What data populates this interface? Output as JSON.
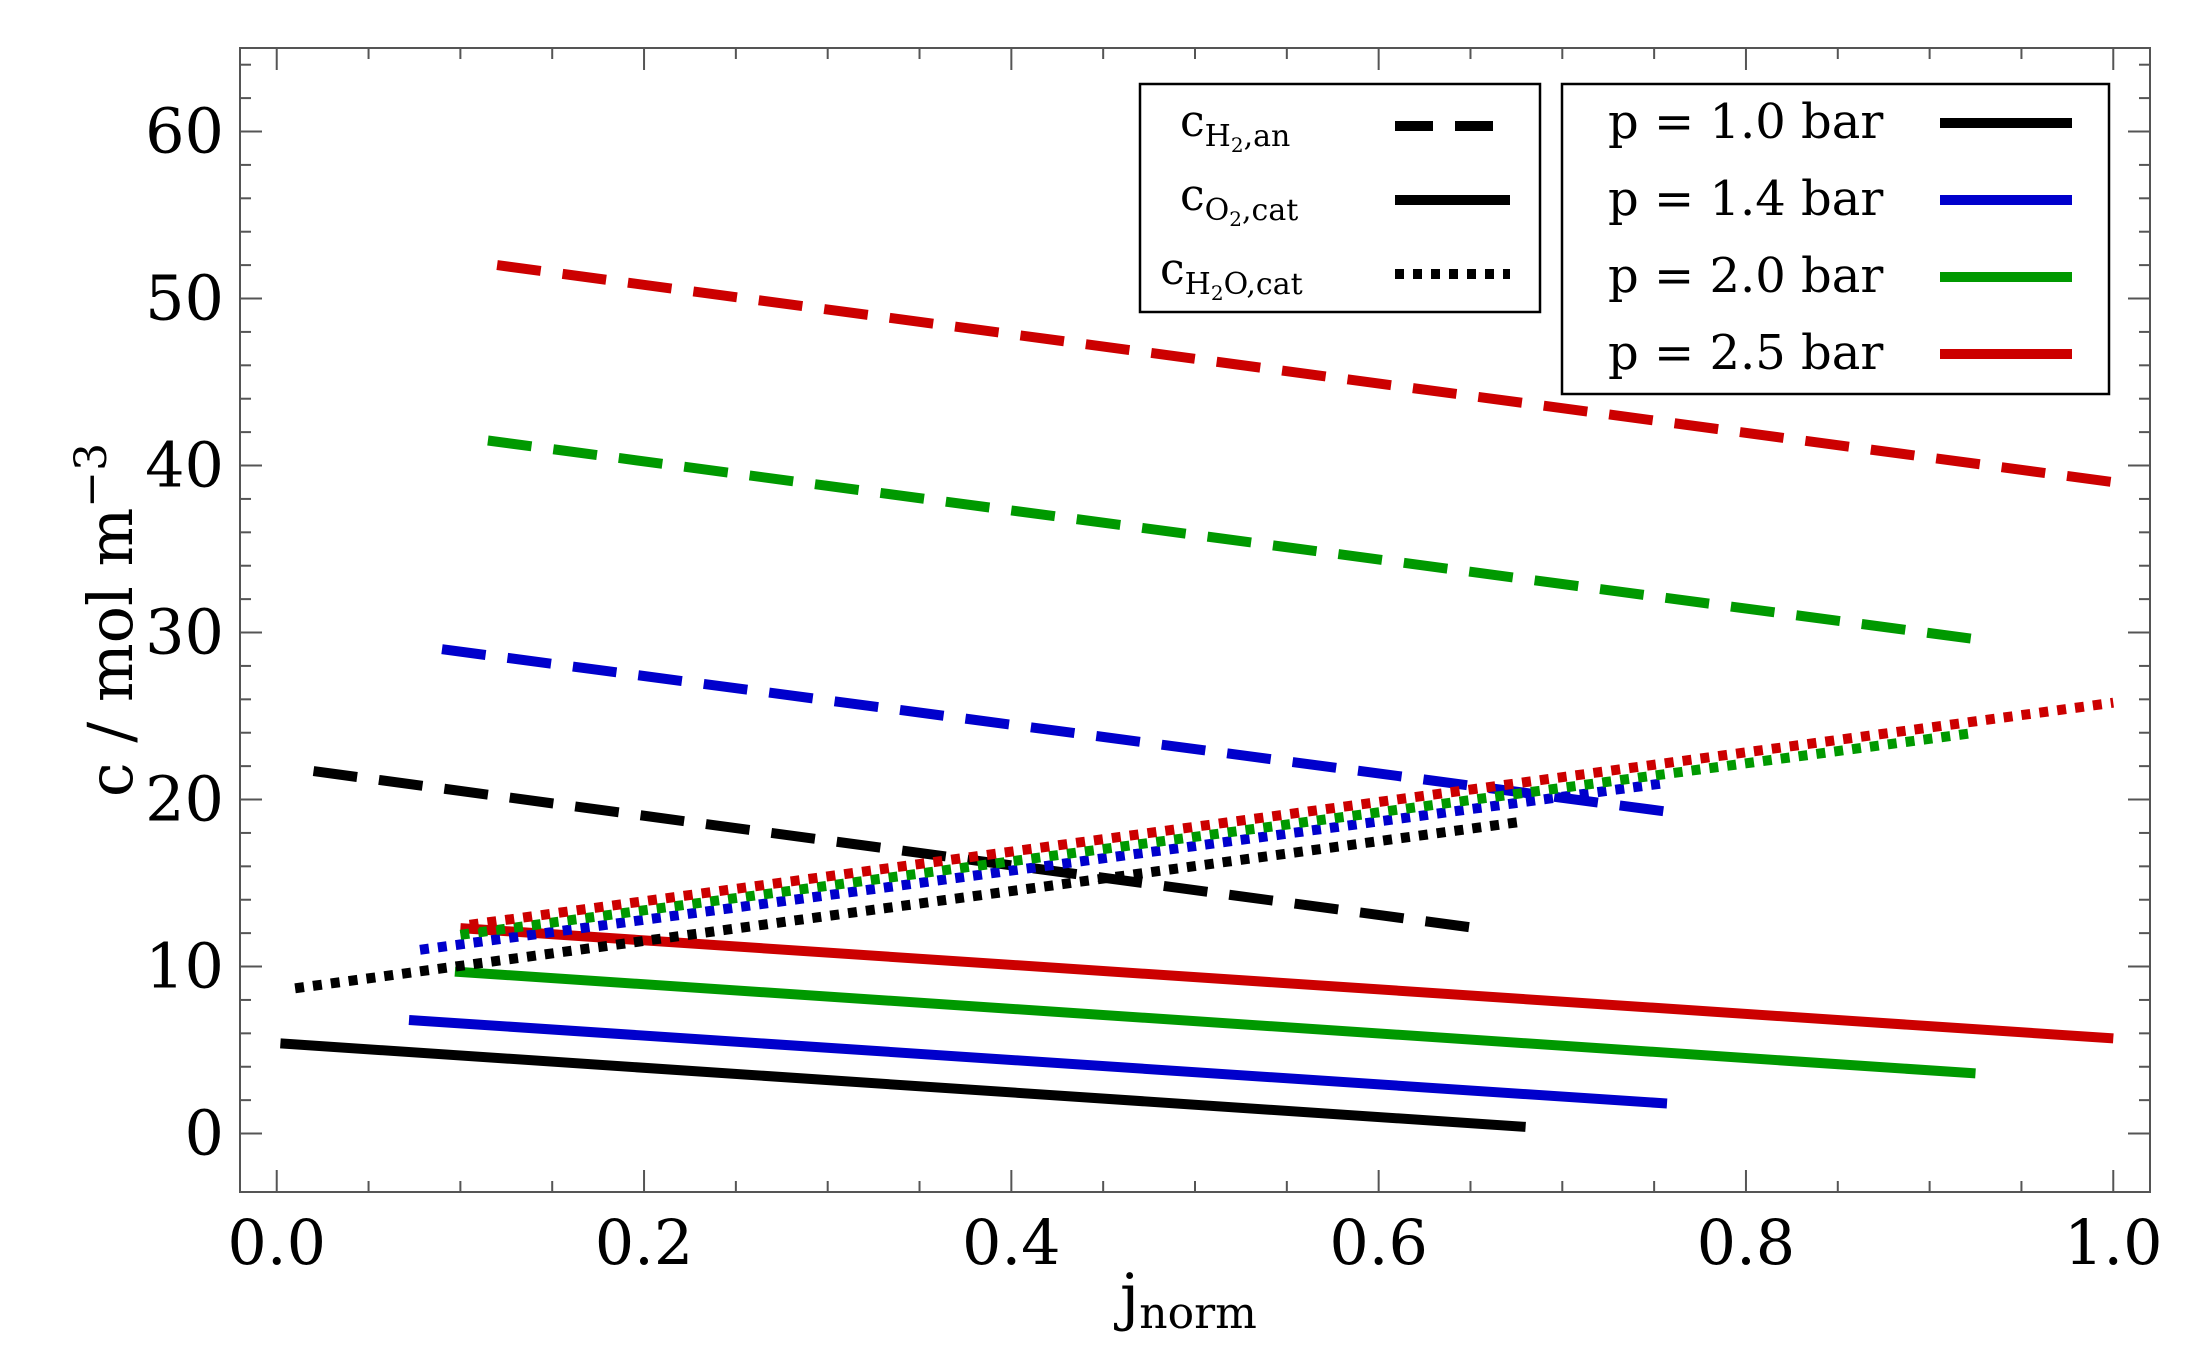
{
  "chart_data": {
    "type": "line",
    "title": "",
    "xlabel": {
      "main": "j",
      "sub": "norm"
    },
    "ylabel": {
      "main": "c / mol m",
      "sup": "−3"
    },
    "xlim": [
      -0.02,
      1.02
    ],
    "ylim": [
      -3.5,
      65
    ],
    "x_ticks": [
      0.0,
      0.2,
      0.4,
      0.6,
      0.8,
      1.0
    ],
    "x_tick_labels": [
      "0.0",
      "0.2",
      "0.4",
      "0.6",
      "0.8",
      "1.0"
    ],
    "y_ticks": [
      0,
      10,
      20,
      30,
      40,
      50,
      60
    ],
    "y_tick_labels": [
      "0",
      "10",
      "20",
      "30",
      "40",
      "50",
      "60"
    ],
    "grid": false,
    "pressure_legend": [
      {
        "label": "p = 1.0 bar",
        "color": "#000000"
      },
      {
        "label": "p = 1.4 bar",
        "color": "#0000cc"
      },
      {
        "label": "p = 2.0 bar",
        "color": "#009900"
      },
      {
        "label": "p = 2.5 bar",
        "color": "#cc0000"
      }
    ],
    "style_legend": [
      {
        "c": "c",
        "sub": "H",
        "subsub": "2",
        "tail": ",an",
        "style": "dashed"
      },
      {
        "c": "c",
        "sub": "O",
        "subsub": "2",
        "tail": ",cat",
        "style": "solid"
      },
      {
        "c": "c",
        "sub": "H",
        "subsub": "2",
        "tail": "O,cat",
        "style": "dotted"
      }
    ],
    "series": [
      {
        "name": "c_H2,an p=1.0 bar",
        "color": "#000000",
        "style": "dashed",
        "x": [
          0.02,
          0.66
        ],
        "y": [
          21.7,
          12.2
        ]
      },
      {
        "name": "c_H2,an p=1.4 bar",
        "color": "#0000cc",
        "style": "dashed",
        "x": [
          0.09,
          0.755
        ],
        "y": [
          29.0,
          19.3
        ]
      },
      {
        "name": "c_H2,an p=2.0 bar",
        "color": "#009900",
        "style": "dashed",
        "x": [
          0.115,
          0.925
        ],
        "y": [
          41.5,
          29.6
        ]
      },
      {
        "name": "c_H2,an p=2.5 bar",
        "color": "#cc0000",
        "style": "dashed",
        "x": [
          0.12,
          1.0
        ],
        "y": [
          52.0,
          39.0
        ]
      },
      {
        "name": "c_O2,cat p=1.0 bar",
        "color": "#000000",
        "style": "solid",
        "x": [
          0.002,
          0.68
        ],
        "y": [
          5.4,
          0.4
        ]
      },
      {
        "name": "c_O2,cat p=1.4 bar",
        "color": "#0000cc",
        "style": "solid",
        "x": [
          0.072,
          0.757
        ],
        "y": [
          6.8,
          1.8
        ]
      },
      {
        "name": "c_O2,cat p=2.0 bar",
        "color": "#009900",
        "style": "solid",
        "x": [
          0.097,
          0.925
        ],
        "y": [
          9.7,
          3.6
        ]
      },
      {
        "name": "c_O2,cat p=2.5 bar",
        "color": "#cc0000",
        "style": "solid",
        "x": [
          0.1,
          1.0
        ],
        "y": [
          12.3,
          5.7
        ]
      },
      {
        "name": "c_H2O,cat p=1.0 bar",
        "color": "#000000",
        "style": "dotted",
        "x": [
          0.01,
          0.68
        ],
        "y": [
          8.7,
          18.7
        ]
      },
      {
        "name": "c_H2O,cat p=1.4 bar",
        "color": "#0000cc",
        "style": "dotted",
        "x": [
          0.078,
          0.757
        ],
        "y": [
          11.0,
          21.0
        ]
      },
      {
        "name": "c_H2O,cat p=2.0 bar",
        "color": "#009900",
        "style": "dotted",
        "x": [
          0.1,
          0.925
        ],
        "y": [
          11.9,
          24.0
        ]
      },
      {
        "name": "c_H2O,cat p=2.5 bar",
        "color": "#cc0000",
        "style": "dotted",
        "x": [
          0.105,
          1.0
        ],
        "y": [
          12.5,
          25.8
        ]
      }
    ]
  }
}
